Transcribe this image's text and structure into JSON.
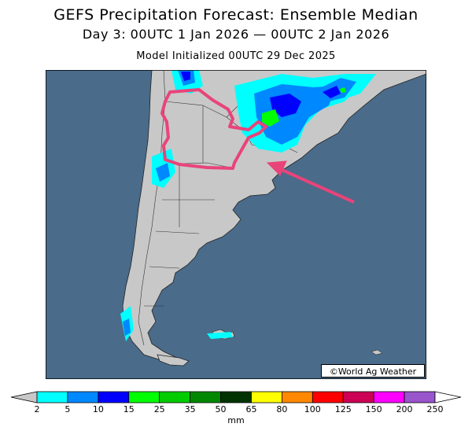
{
  "header": {
    "title": "GEFS Precipitation Forecast: Ensemble Median",
    "subtitle": "Day 3: 00UTC 1 Jan 2026 — 00UTC 2 Jan 2026",
    "init": "Model Initialized 00UTC 29 Dec 2025"
  },
  "map": {
    "credit": "©World Ag Weather",
    "ocean_color": "#4a6b8a",
    "land_color": "#c8c8c8",
    "highlight_color": "#e8447a"
  },
  "legend": {
    "unit": "mm",
    "ticks": [
      "2",
      "5",
      "10",
      "15",
      "25",
      "35",
      "50",
      "65",
      "80",
      "100",
      "125",
      "150",
      "200",
      "250"
    ],
    "colors": [
      "#00ffff",
      "#0088ff",
      "#0000ff",
      "#00ff00",
      "#00cc00",
      "#008800",
      "#003300",
      "#ffff00",
      "#ff8800",
      "#ff0000",
      "#cc0055",
      "#ff00ff",
      "#9955cc"
    ]
  }
}
